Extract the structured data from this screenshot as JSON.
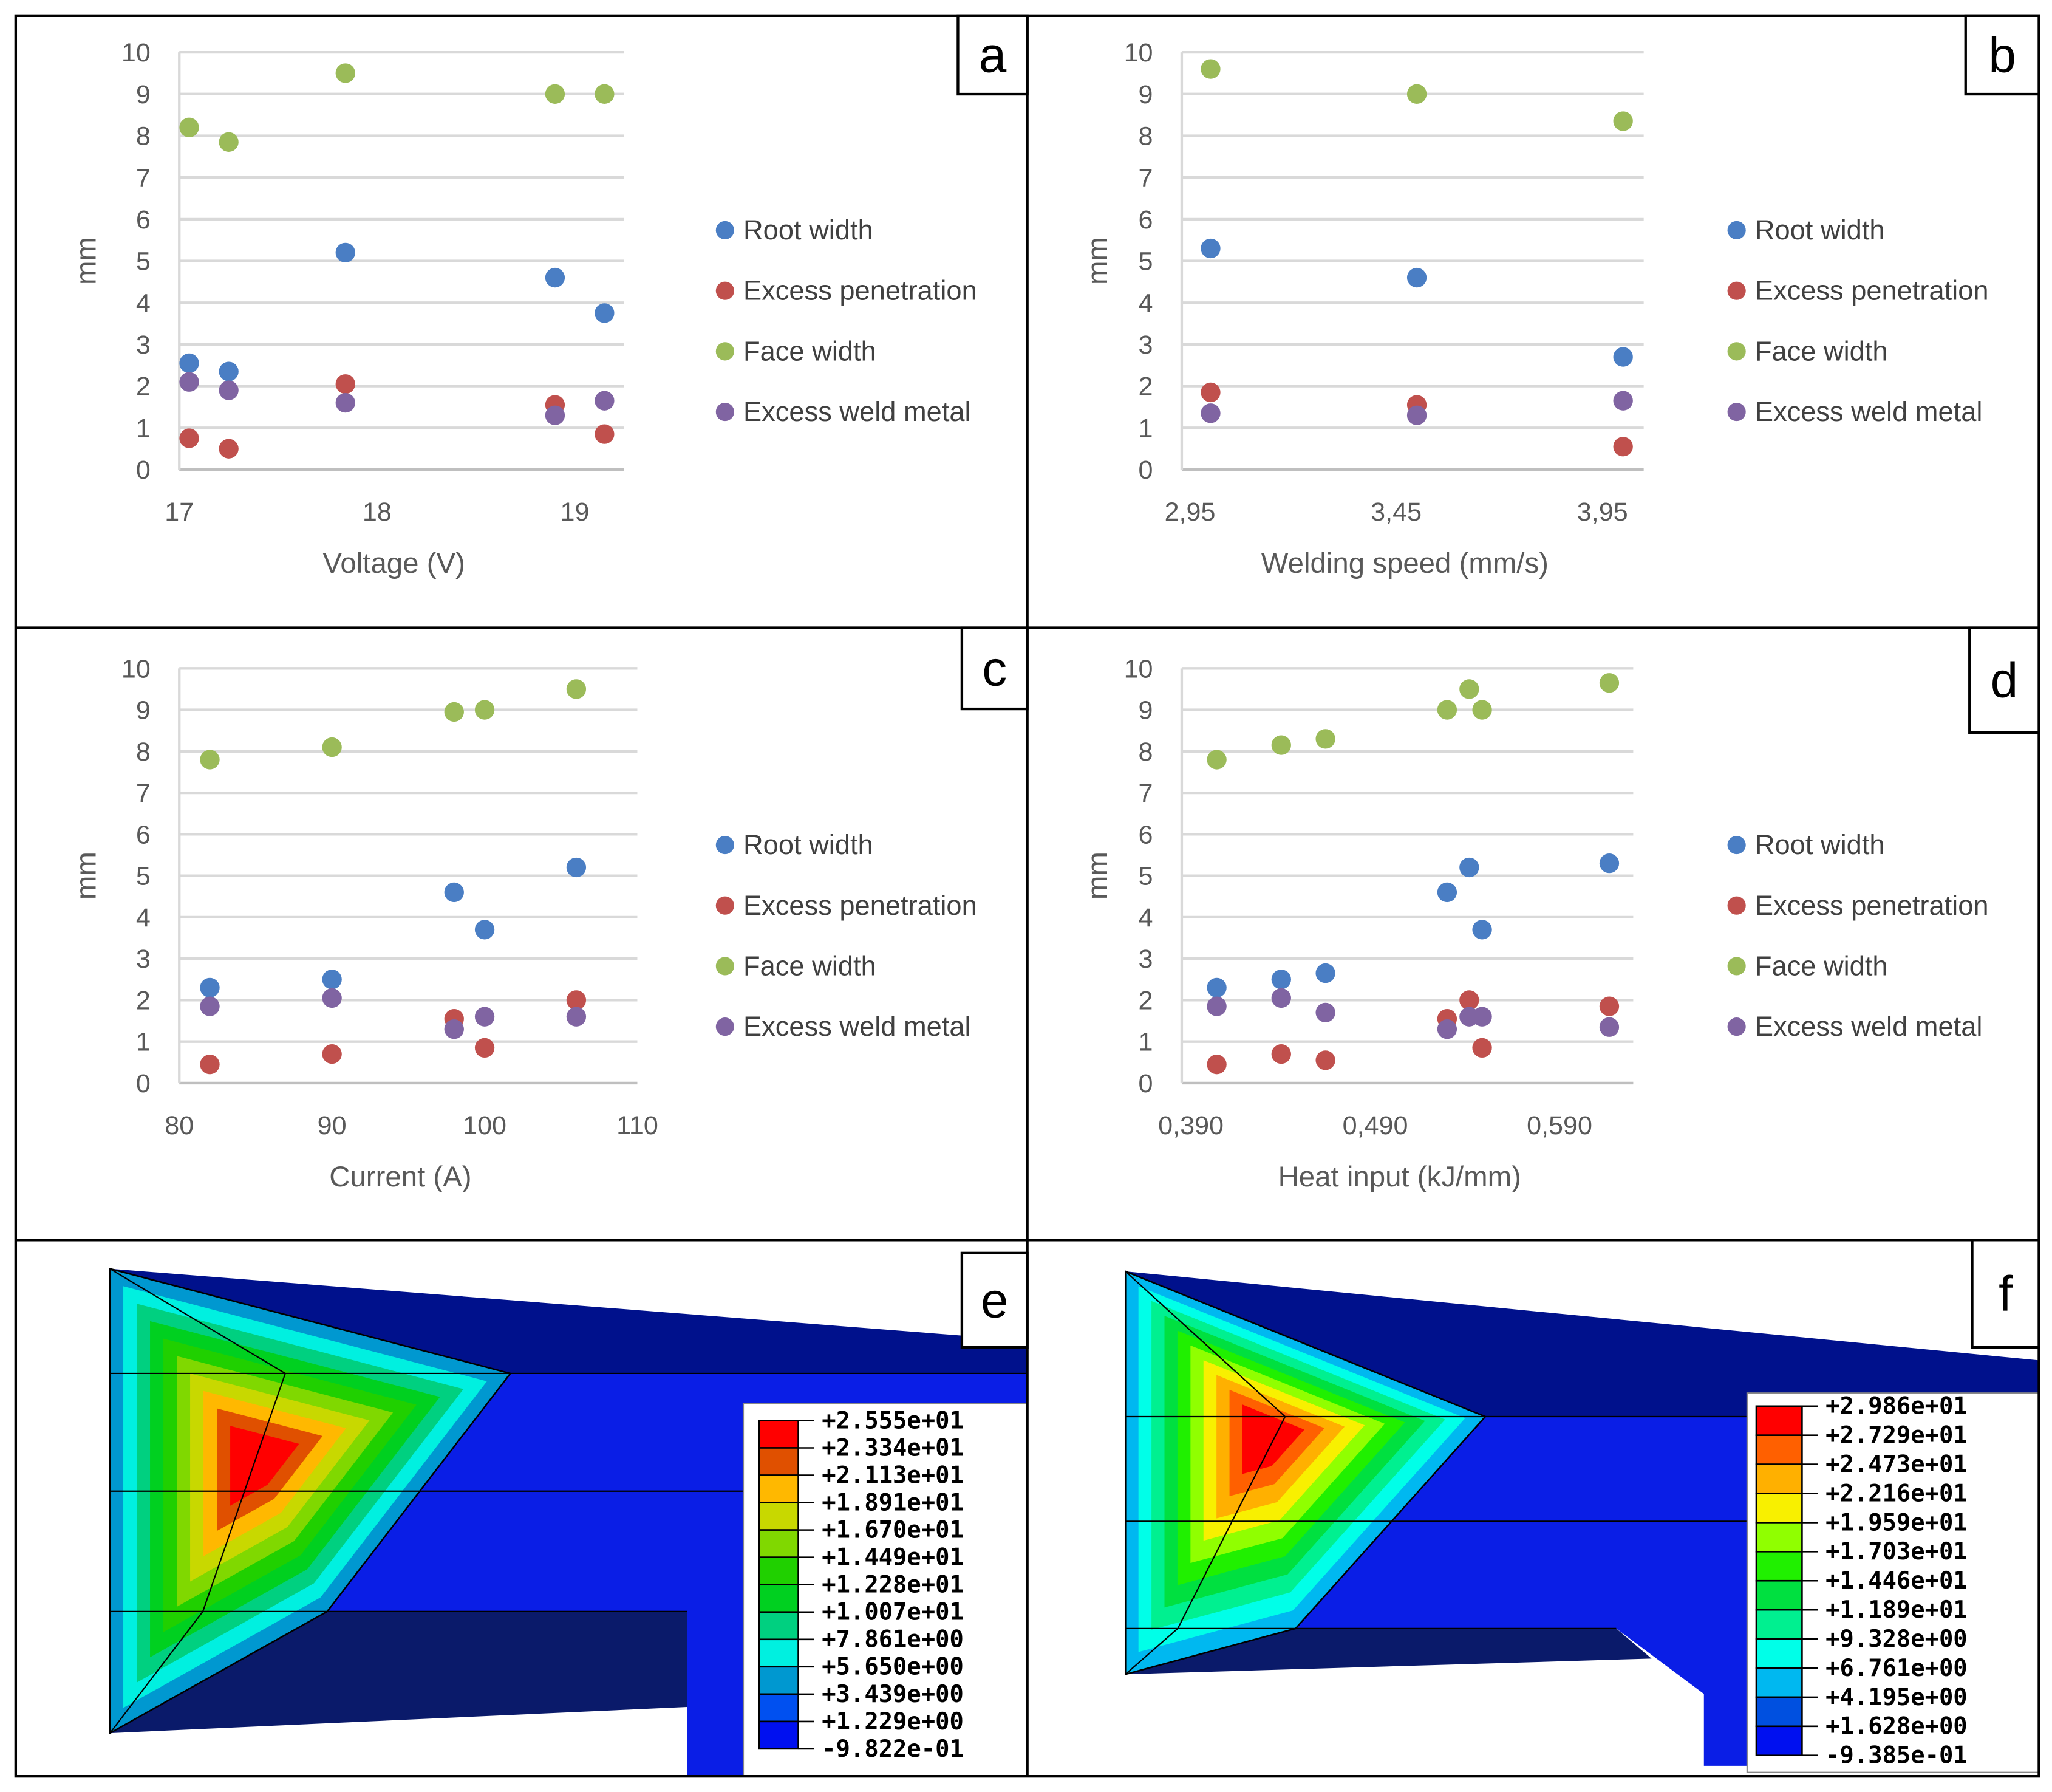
{
  "panels": {
    "a": "a",
    "b": "b",
    "c": "c",
    "d": "d",
    "e": "e",
    "f": "f"
  },
  "legend": [
    "Root width",
    "Excess penetration",
    "Face width",
    "Excess weld metal"
  ],
  "series_colors": {
    "Root width": "#4a7ec4",
    "Excess penetration": "#c0504d",
    "Face width": "#9bbb59",
    "Excess weld metal": "#8064a2"
  },
  "chart_data": [
    {
      "type": "scatter",
      "panel": "a",
      "xlabel": "Voltage (V)",
      "ylabel": "mm",
      "xlim": [
        17,
        19.25
      ],
      "ylim": [
        0,
        10
      ],
      "xticks": [
        17,
        18,
        19
      ],
      "xtick_labels": [
        "17",
        "18",
        "19"
      ],
      "yticks": [
        0,
        1,
        2,
        3,
        4,
        5,
        6,
        7,
        8,
        9,
        10
      ],
      "grid": true,
      "legend_position": "right",
      "x": [
        17.05,
        17.25,
        17.84,
        18.9,
        19.15
      ],
      "series": [
        {
          "name": "Root width",
          "values": [
            2.55,
            2.35,
            5.2,
            4.6,
            3.75
          ]
        },
        {
          "name": "Excess penetration",
          "values": [
            0.75,
            0.5,
            2.05,
            1.55,
            0.85
          ]
        },
        {
          "name": "Face width",
          "values": [
            8.2,
            7.85,
            9.5,
            9.0,
            9.0
          ]
        },
        {
          "name": "Excess weld metal",
          "values": [
            2.1,
            1.9,
            1.6,
            1.3,
            1.65
          ]
        }
      ]
    },
    {
      "type": "scatter",
      "panel": "b",
      "xlabel": "Welding speed (mm/s)",
      "ylabel": "mm",
      "xlim": [
        2.93,
        4.05
      ],
      "ylim": [
        0,
        10
      ],
      "xticks": [
        2.95,
        3.45,
        3.95
      ],
      "xtick_labels": [
        "2,95",
        "3,45",
        "3,95"
      ],
      "yticks": [
        0,
        1,
        2,
        3,
        4,
        5,
        6,
        7,
        8,
        9,
        10
      ],
      "grid": true,
      "legend_position": "right",
      "x": [
        3.0,
        3.5,
        4.0
      ],
      "series": [
        {
          "name": "Root width",
          "values": [
            5.3,
            4.6,
            2.7
          ]
        },
        {
          "name": "Excess penetration",
          "values": [
            1.85,
            1.55,
            0.55
          ]
        },
        {
          "name": "Face width",
          "values": [
            9.6,
            9.0,
            8.35
          ]
        },
        {
          "name": "Excess weld metal",
          "values": [
            1.35,
            1.3,
            1.65
          ]
        }
      ]
    },
    {
      "type": "scatter",
      "panel": "c",
      "xlabel": "Current (A)",
      "ylabel": "mm",
      "xlim": [
        80,
        110
      ],
      "ylim": [
        0,
        10
      ],
      "xticks": [
        80,
        90,
        100,
        110
      ],
      "xtick_labels": [
        "80",
        "90",
        "100",
        "110"
      ],
      "yticks": [
        0,
        1,
        2,
        3,
        4,
        5,
        6,
        7,
        8,
        9,
        10
      ],
      "grid": true,
      "legend_position": "right",
      "x": [
        82,
        90,
        98,
        100,
        106
      ],
      "series": [
        {
          "name": "Root width",
          "values": [
            2.3,
            2.5,
            4.6,
            3.7,
            5.2
          ]
        },
        {
          "name": "Excess penetration",
          "values": [
            0.45,
            0.7,
            1.55,
            0.85,
            2.0
          ]
        },
        {
          "name": "Face width",
          "values": [
            7.8,
            8.1,
            8.95,
            9.0,
            9.5
          ]
        },
        {
          "name": "Excess weld metal",
          "values": [
            1.85,
            2.05,
            1.3,
            1.6,
            1.6
          ]
        }
      ]
    },
    {
      "type": "scatter",
      "panel": "d",
      "xlabel": "Heat input (kJ/mm)",
      "ylabel": "mm",
      "xlim": [
        0.385,
        0.63
      ],
      "ylim": [
        0,
        10
      ],
      "xticks": [
        0.39,
        0.49,
        0.59
      ],
      "xtick_labels": [
        "0,390",
        "0,490",
        "0,590"
      ],
      "yticks": [
        0,
        1,
        2,
        3,
        4,
        5,
        6,
        7,
        8,
        9,
        10
      ],
      "grid": true,
      "legend_position": "right",
      "x": [
        0.404,
        0.439,
        0.463,
        0.529,
        0.541,
        0.548,
        0.617
      ],
      "series": [
        {
          "name": "Root width",
          "values": [
            2.3,
            2.5,
            2.65,
            4.6,
            5.2,
            3.7,
            5.3
          ]
        },
        {
          "name": "Excess penetration",
          "values": [
            0.45,
            0.7,
            0.55,
            1.55,
            2.0,
            0.85,
            1.85
          ]
        },
        {
          "name": "Face width",
          "values": [
            7.8,
            8.15,
            8.3,
            9.0,
            9.5,
            9.0,
            9.65
          ]
        },
        {
          "name": "Excess weld metal",
          "values": [
            1.85,
            2.05,
            1.7,
            1.3,
            1.6,
            1.6,
            1.35
          ]
        }
      ]
    }
  ],
  "fea": [
    {
      "panel": "e",
      "labels": [
        "+2.555e+01",
        "+2.334e+01",
        "+2.113e+01",
        "+1.891e+01",
        "+1.670e+01",
        "+1.449e+01",
        "+1.228e+01",
        "+1.007e+01",
        "+7.861e+00",
        "+5.650e+00",
        "+3.439e+00",
        "+1.229e+00",
        "-9.822e-01"
      ],
      "colors": [
        "#ff0000",
        "#e05000",
        "#ffb800",
        "#c8d800",
        "#80d800",
        "#20d000",
        "#00d020",
        "#00d080",
        "#00f0e0",
        "#0098d0",
        "#0050f0",
        "#0010f0"
      ]
    },
    {
      "panel": "f",
      "labels": [
        "+2.986e+01",
        "+2.729e+01",
        "+2.473e+01",
        "+2.216e+01",
        "+1.959e+01",
        "+1.703e+01",
        "+1.446e+01",
        "+1.189e+01",
        "+9.328e+00",
        "+6.761e+00",
        "+4.195e+00",
        "+1.628e+00",
        "-9.385e-01"
      ],
      "colors": [
        "#ff0000",
        "#ff6000",
        "#ffb000",
        "#f8f000",
        "#90ff00",
        "#20f000",
        "#00e040",
        "#00f090",
        "#00ffe8",
        "#00b8f0",
        "#0050e0",
        "#0010f0"
      ]
    }
  ]
}
